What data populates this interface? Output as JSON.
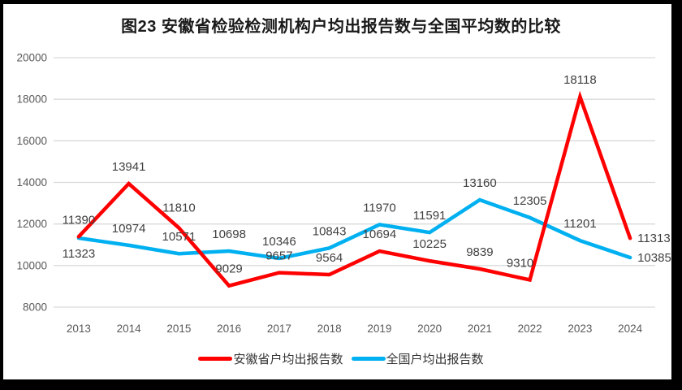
{
  "chart_data": {
    "type": "line",
    "title": "图23 安徽省检验检测机构户均出报告数与全国平均数的比较",
    "x": [
      "2013",
      "2014",
      "2015",
      "2016",
      "2017",
      "2018",
      "2019",
      "2020",
      "2021",
      "2022",
      "2023",
      "2024"
    ],
    "series": [
      {
        "name": "安徽省户均出报告数",
        "color": "#FF0000",
        "values": [
          11390,
          13941,
          11810,
          9029,
          9657,
          9564,
          10694,
          10225,
          9839,
          9310,
          18118,
          11313
        ]
      },
      {
        "name": "全国户均出报告数",
        "color": "#00B0F0",
        "values": [
          11323,
          10974,
          10571,
          10698,
          10346,
          10843,
          11970,
          11591,
          13160,
          12305,
          11201,
          10385
        ]
      }
    ],
    "ylim": [
      8000,
      20000
    ],
    "yticks": [
      8000,
      10000,
      12000,
      14000,
      16000,
      18000,
      20000
    ],
    "grid": true,
    "legend_position": "bottom",
    "label_overrides": [
      {
        "series": 0,
        "index": 2,
        "dy": -4
      },
      {
        "series": 0,
        "index": 9,
        "dx": -12
      },
      {
        "series": 0,
        "index": 11,
        "pos": "right"
      },
      {
        "series": 1,
        "index": 0,
        "pos": "below"
      },
      {
        "series": 1,
        "index": 11,
        "pos": "right"
      }
    ]
  },
  "colors": {
    "grid": "#D9D9D9",
    "axis_text": "#595959",
    "data_label": "#404040",
    "frame": "#000000"
  }
}
